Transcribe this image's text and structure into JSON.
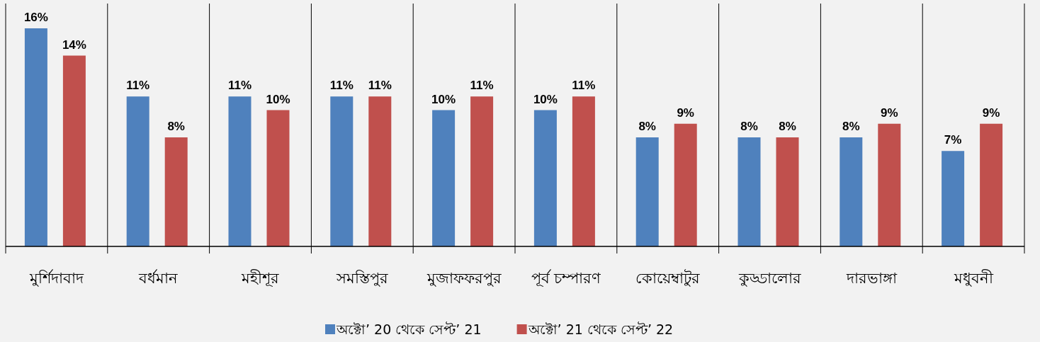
{
  "chart_data": {
    "type": "bar",
    "categories": [
      "মুর্শিদাবাদ",
      "বর্ধমান",
      "মহীশূর",
      "সমস্তিপুর",
      "মুজাফফরপুর",
      "পূর্ব চম্পারণ",
      "কোয়েম্বাটুর",
      "কুড্ডালোর",
      "দারভাঙ্গা",
      "মধুবনী"
    ],
    "series": [
      {
        "name": "অক্টো’ 20 থেকে সেপ্ট’ 21",
        "color": "#4f81bd",
        "values": [
          16,
          11,
          11,
          11,
          10,
          10,
          8,
          8,
          8,
          7
        ],
        "value_labels": [
          "16%",
          "11%",
          "11%",
          "11%",
          "10%",
          "10%",
          "8%",
          "8%",
          "8%",
          "7%"
        ]
      },
      {
        "name": "অক্টো’ 21 থেকে সেপ্ট’ 22",
        "color": "#c0504d",
        "values": [
          14,
          8,
          10,
          11,
          11,
          11,
          9,
          8,
          9,
          9
        ],
        "value_labels": [
          "14%",
          "8%",
          "10%",
          "11%",
          "11%",
          "11%",
          "9%",
          "8%",
          "9%",
          "9%"
        ]
      }
    ],
    "grid": "x",
    "legend": "bottom"
  }
}
